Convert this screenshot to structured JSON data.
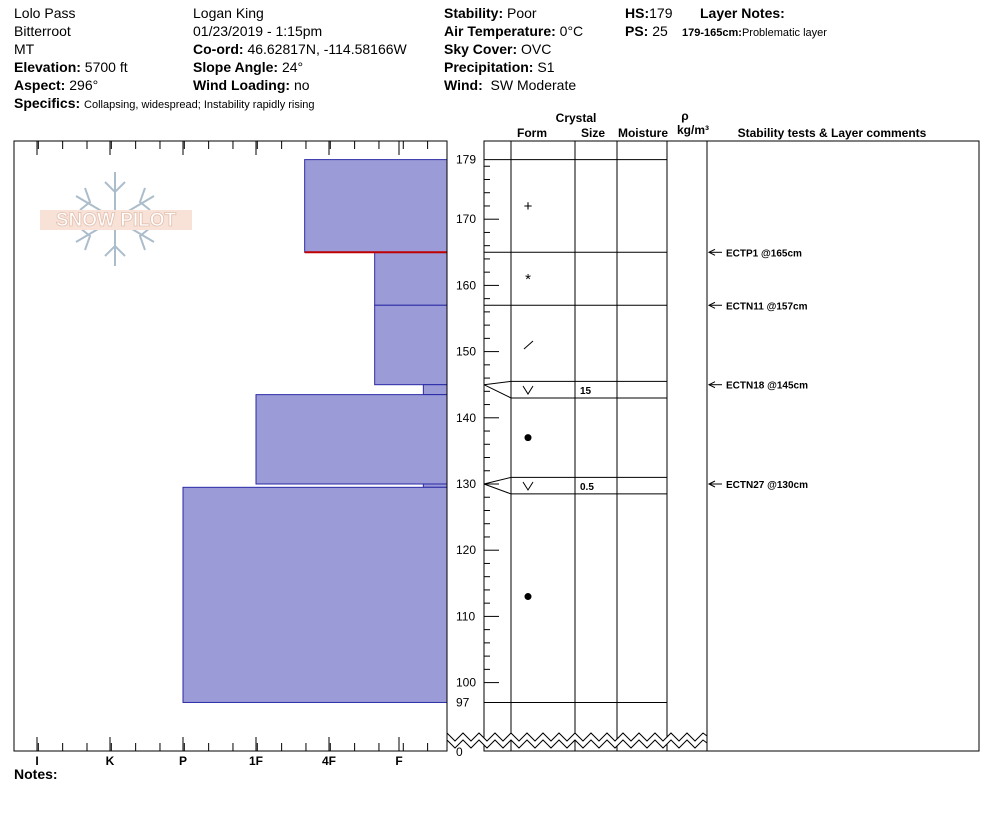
{
  "header": {
    "location": "Lolo Pass",
    "range": "Bitterroot",
    "state": "MT",
    "elevation_label": "Elevation:",
    "elevation": "5700 ft",
    "aspect_label": "Aspect:",
    "aspect": "296°",
    "specifics_label": "Specifics:",
    "specifics": "Collapsing, widespread;  Instability rapidly rising",
    "observer": "Logan King",
    "datetime": "01/23/2019 - 1:15pm",
    "coord_label": "Co-ord:",
    "coord": "46.62817N, -114.58166W",
    "slope_label": "Slope Angle:",
    "slope": "24°",
    "wind_loading_label": "Wind Loading:",
    "wind_loading": "no",
    "stability_label": "Stability:",
    "stability": "Poor",
    "air_temp_label": "Air Temperature:",
    "air_temp": "0°C",
    "sky_label": "Sky Cover:",
    "sky": "OVC",
    "precip_label": "Precipitation:",
    "precip": "S1",
    "wind_label": "Wind:",
    "wind": "SW Moderate",
    "hs_label": "HS:",
    "hs": "179",
    "ps_label": "PS:",
    "ps": "25",
    "layer_notes_label": "Layer Notes:",
    "layer_note_range": "179-165cm:",
    "layer_note_text": "Problematic layer"
  },
  "notes_label": "Notes:",
  "logo_text": "SNOW PILOT",
  "columns": {
    "crystal": "Crystal",
    "form": "Form",
    "size": "Size",
    "moisture": "Moisture",
    "rho": "ρ",
    "density_unit": "kg/m³",
    "stability": "Stability tests & Layer comments"
  },
  "colors": {
    "hardness_fill": "#9b9bd7",
    "hardness_stroke": "#2a2aa6",
    "weak_layer_line": "#c00000"
  },
  "chart_data": {
    "type": "snow-profile",
    "y_ticks": [
      100,
      110,
      120,
      130,
      140,
      150,
      160,
      170
    ],
    "y_top_label": "179",
    "y_bottom_label": "97",
    "y_zero_label": "0",
    "y_range": [
      97,
      179
    ],
    "hardness_ticks": [
      "I",
      "K",
      "P",
      "1F",
      "4F",
      "F"
    ],
    "hardness_layers": [
      {
        "top": 179,
        "bottom": 165,
        "hardness": "4F+"
      },
      {
        "top": 165,
        "bottom": 157,
        "hardness": "F+"
      },
      {
        "top": 157,
        "bottom": 145,
        "hardness": "F+"
      },
      {
        "top": 145,
        "bottom": 143.5,
        "hardness": "F-"
      },
      {
        "top": 143.5,
        "bottom": 130,
        "hardness": "1F"
      },
      {
        "top": 130,
        "bottom": 129.5,
        "hardness": "F-"
      },
      {
        "top": 129.5,
        "bottom": 97,
        "hardness": "P"
      }
    ],
    "layer_boundaries": [
      179,
      165,
      157,
      145.5,
      143,
      131,
      128.5,
      97
    ],
    "weak_layer": 165,
    "grain_forms": [
      {
        "depth": 172,
        "symbol": "+"
      },
      {
        "depth": 161,
        "symbol": "*"
      },
      {
        "depth": 151,
        "symbol": "/"
      },
      {
        "depth": 144.2,
        "symbol": "v"
      },
      {
        "depth": 137,
        "symbol": "●"
      },
      {
        "depth": 129.7,
        "symbol": "v"
      },
      {
        "depth": 113,
        "symbol": "●"
      }
    ],
    "grain_sizes": [
      {
        "depth": 144.2,
        "size": "15"
      },
      {
        "depth": 129.7,
        "size": "0.5"
      }
    ],
    "stability_tests": [
      {
        "depth": 165,
        "text": "ECTP1 @165cm"
      },
      {
        "depth": 157,
        "text": "ECTN11 @157cm"
      },
      {
        "depth": 145,
        "text": "ECTN18 @145cm"
      },
      {
        "depth": 130,
        "text": "ECTN27 @130cm"
      }
    ]
  }
}
